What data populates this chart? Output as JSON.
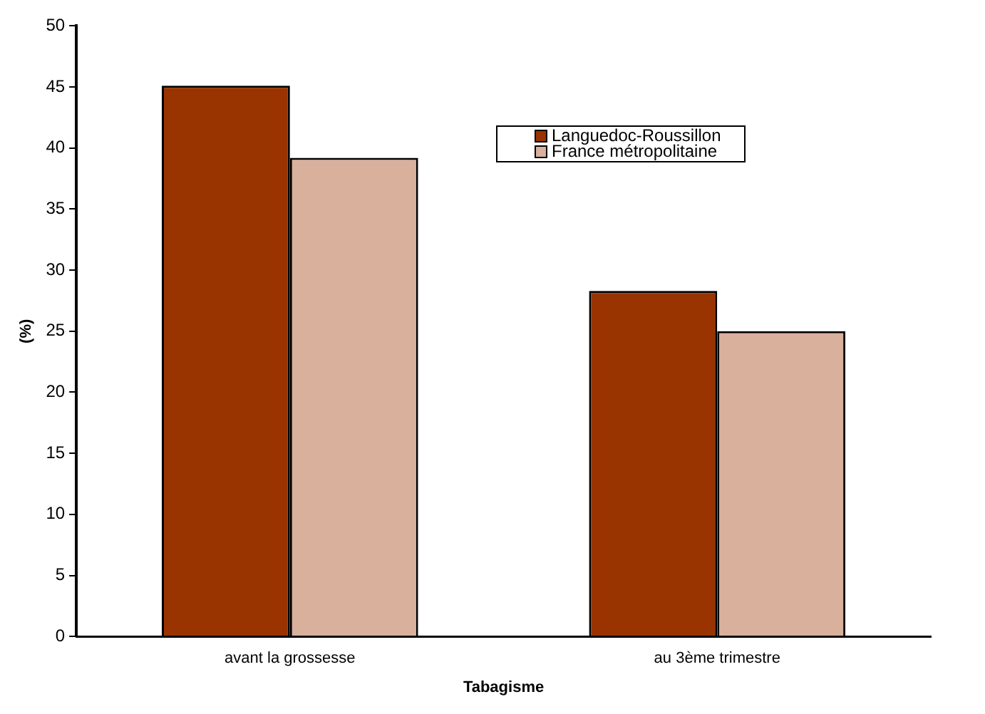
{
  "chart_data": {
    "type": "bar",
    "xlabel": "Tabagisme",
    "ylabel": "(%)",
    "categories": [
      "avant la grossesse",
      "au 3ème trimestre"
    ],
    "series": [
      {
        "name": "Languedoc-Roussillon",
        "color": "#993300",
        "values": [
          45.1,
          28.3
        ]
      },
      {
        "name": "France métropolitaine",
        "color": "#d8b09c",
        "values": [
          39.2,
          25.0
        ]
      }
    ],
    "ylim": [
      0,
      50
    ],
    "yticks": [
      0,
      5,
      10,
      15,
      20,
      25,
      30,
      35,
      40,
      45,
      50
    ],
    "grid": false,
    "legend": "top right"
  }
}
